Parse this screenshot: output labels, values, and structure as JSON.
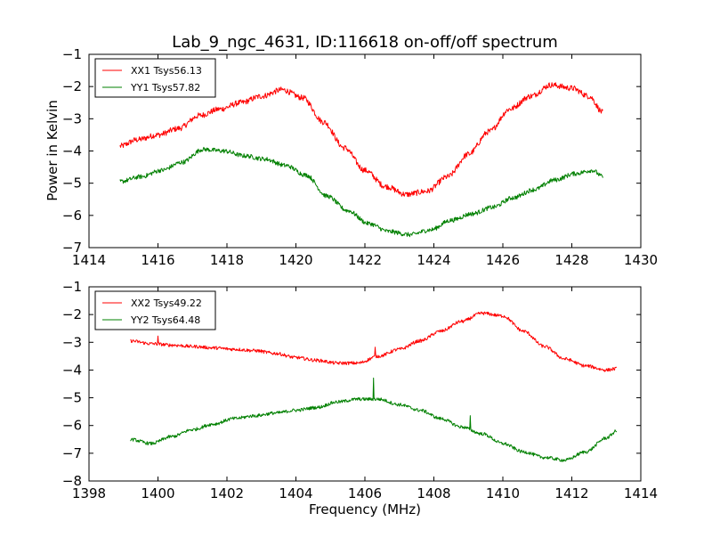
{
  "figure": {
    "title": "Lab_9_ngc_4631, ID:116618 on-off/off spectrum",
    "xlabel": "Frequency (MHz)",
    "ylabel": "Power in Kelvin"
  },
  "colors": {
    "xx": "#ff0000",
    "yy": "#008000"
  },
  "chart_data": [
    {
      "type": "line",
      "title": "Lab_9_ngc_4631, ID:116618 on-off/off spectrum",
      "xlabel": "",
      "ylabel": "Power in Kelvin",
      "xlim": [
        1414,
        1430
      ],
      "ylim": [
        -7,
        -1
      ],
      "xticks": [
        "1414",
        "1416",
        "1418",
        "1420",
        "1422",
        "1424",
        "1426",
        "1428",
        "1430"
      ],
      "yticks": [
        "−1",
        "−2",
        "−3",
        "−4",
        "−5",
        "−6",
        "−7"
      ],
      "legend_position": "upper-left",
      "grid": false,
      "series": [
        {
          "name": "XX1 Tsys56.13",
          "color": "#ff0000",
          "x": [
            1414.9,
            1415.4,
            1416.0,
            1416.6,
            1417.2,
            1417.8,
            1418.4,
            1419.0,
            1419.6,
            1420.2,
            1420.8,
            1421.4,
            1422.0,
            1422.6,
            1423.2,
            1423.8,
            1424.4,
            1425.0,
            1425.6,
            1426.2,
            1426.8,
            1427.4,
            1428.0,
            1428.5,
            1428.9
          ],
          "y": [
            -3.85,
            -3.65,
            -3.5,
            -3.3,
            -2.9,
            -2.7,
            -2.5,
            -2.3,
            -2.1,
            -2.35,
            -3.1,
            -3.9,
            -4.6,
            -5.1,
            -5.35,
            -5.25,
            -4.8,
            -4.1,
            -3.4,
            -2.7,
            -2.3,
            -1.95,
            -2.05,
            -2.3,
            -2.8
          ],
          "noise": 0.09
        },
        {
          "name": "YY1 Tsys57.82",
          "color": "#008000",
          "x": [
            1414.9,
            1415.5,
            1416.1,
            1416.7,
            1417.3,
            1417.9,
            1418.5,
            1419.1,
            1419.7,
            1420.3,
            1420.9,
            1421.5,
            1422.1,
            1422.7,
            1423.3,
            1423.9,
            1424.5,
            1425.1,
            1425.7,
            1426.3,
            1426.9,
            1427.5,
            1428.1,
            1428.6,
            1428.9
          ],
          "y": [
            -4.95,
            -4.8,
            -4.6,
            -4.35,
            -3.95,
            -4.0,
            -4.15,
            -4.25,
            -4.45,
            -4.75,
            -5.4,
            -5.85,
            -6.25,
            -6.5,
            -6.6,
            -6.45,
            -6.15,
            -5.95,
            -5.75,
            -5.45,
            -5.2,
            -4.9,
            -4.7,
            -4.6,
            -4.8
          ],
          "noise": 0.07
        }
      ]
    },
    {
      "type": "line",
      "title": "",
      "xlabel": "Frequency (MHz)",
      "ylabel": "",
      "xlim": [
        1398,
        1414
      ],
      "ylim": [
        -8,
        -1
      ],
      "xticks": [
        "1398",
        "1400",
        "1402",
        "1404",
        "1406",
        "1408",
        "1410",
        "1412",
        "1414"
      ],
      "yticks": [
        "−1",
        "−2",
        "−3",
        "−4",
        "−5",
        "−6",
        "−7",
        "−8"
      ],
      "legend_position": "upper-left",
      "grid": false,
      "series": [
        {
          "name": "XX2 Tsys49.22",
          "color": "#ff0000",
          "x": [
            1399.2,
            1399.8,
            1400.4,
            1401.0,
            1401.6,
            1402.2,
            1402.8,
            1403.4,
            1404.0,
            1404.6,
            1405.2,
            1405.8,
            1406.4,
            1407.0,
            1407.6,
            1408.2,
            1408.8,
            1409.4,
            1410.0,
            1410.6,
            1411.2,
            1411.8,
            1412.4,
            1413.0,
            1413.3
          ],
          "y": [
            -2.95,
            -3.05,
            -3.1,
            -3.15,
            -3.2,
            -3.25,
            -3.3,
            -3.4,
            -3.55,
            -3.65,
            -3.75,
            -3.75,
            -3.5,
            -3.25,
            -2.95,
            -2.6,
            -2.25,
            -1.95,
            -2.05,
            -2.6,
            -3.15,
            -3.6,
            -3.85,
            -4.0,
            -3.95
          ],
          "noise": 0.06,
          "spikes": [
            {
              "x": 1400.0,
              "dy": 0.3
            },
            {
              "x": 1406.3,
              "dy": 0.4
            }
          ]
        },
        {
          "name": "YY2 Tsys64.48",
          "color": "#008000",
          "x": [
            1399.2,
            1399.8,
            1400.4,
            1401.0,
            1401.6,
            1402.2,
            1402.8,
            1403.4,
            1404.0,
            1404.6,
            1405.2,
            1405.8,
            1406.4,
            1407.0,
            1407.6,
            1408.2,
            1408.8,
            1409.4,
            1410.0,
            1410.6,
            1411.2,
            1411.8,
            1412.4,
            1413.0,
            1413.3
          ],
          "y": [
            -6.5,
            -6.65,
            -6.4,
            -6.15,
            -5.95,
            -5.75,
            -5.65,
            -5.55,
            -5.45,
            -5.35,
            -5.15,
            -5.05,
            -5.05,
            -5.25,
            -5.45,
            -5.75,
            -6.05,
            -6.3,
            -6.65,
            -6.95,
            -7.15,
            -7.25,
            -6.95,
            -6.45,
            -6.2
          ],
          "noise": 0.06,
          "spikes": [
            {
              "x": 1406.25,
              "dy": 0.75
            },
            {
              "x": 1409.05,
              "dy": 0.45
            }
          ]
        }
      ]
    }
  ]
}
